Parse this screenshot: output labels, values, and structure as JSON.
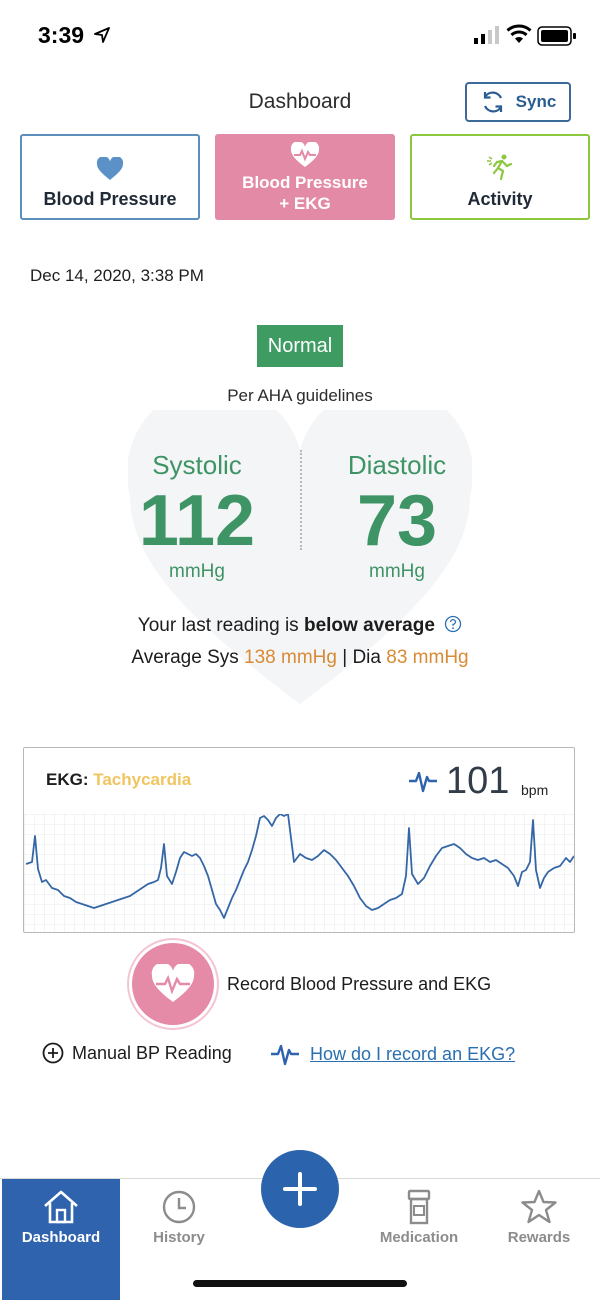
{
  "status_bar": {
    "time": "3:39"
  },
  "header": {
    "title": "Dashboard",
    "sync_label": "Sync"
  },
  "modes": {
    "bp_label": "Blood Pressure",
    "bpekg_line1": "Blood Pressure",
    "bpekg_line2": "+ EKG",
    "activity_label": "Activity"
  },
  "reading": {
    "date": "Dec 14, 2020, 3:38 PM",
    "status": "Normal",
    "guideline": "Per AHA guidelines",
    "systolic_label": "Systolic",
    "systolic_value": "112",
    "systolic_unit": "mmHg",
    "diastolic_label": "Diastolic",
    "diastolic_value": "73",
    "diastolic_unit": "mmHg",
    "summary_prefix": "Your last reading is ",
    "summary_bold": "below average",
    "avg_sys_prefix": "Average Sys ",
    "avg_sys_value": "138 mmHg",
    "avg_separator": " | Dia ",
    "avg_dia_value": "83 mmHg"
  },
  "ekg": {
    "label": "EKG: ",
    "condition": "Tachycardia",
    "bpm_value": "101",
    "bpm_unit": "bpm"
  },
  "actions": {
    "record_label": "Record Blood Pressure and EKG",
    "manual_label": "Manual BP Reading",
    "ekg_help_label": "How do I record an EKG?"
  },
  "tabs": {
    "dashboard": "Dashboard",
    "history": "History",
    "medication": "Medication",
    "rewards": "Rewards"
  },
  "colors": {
    "primary_blue": "#2f63ad",
    "normal_green": "#3e9c62",
    "pink": "#e28aa6",
    "activity_green": "#8dc63f",
    "orange": "#d98a35",
    "tachycardia_yellow": "#f0c560"
  }
}
